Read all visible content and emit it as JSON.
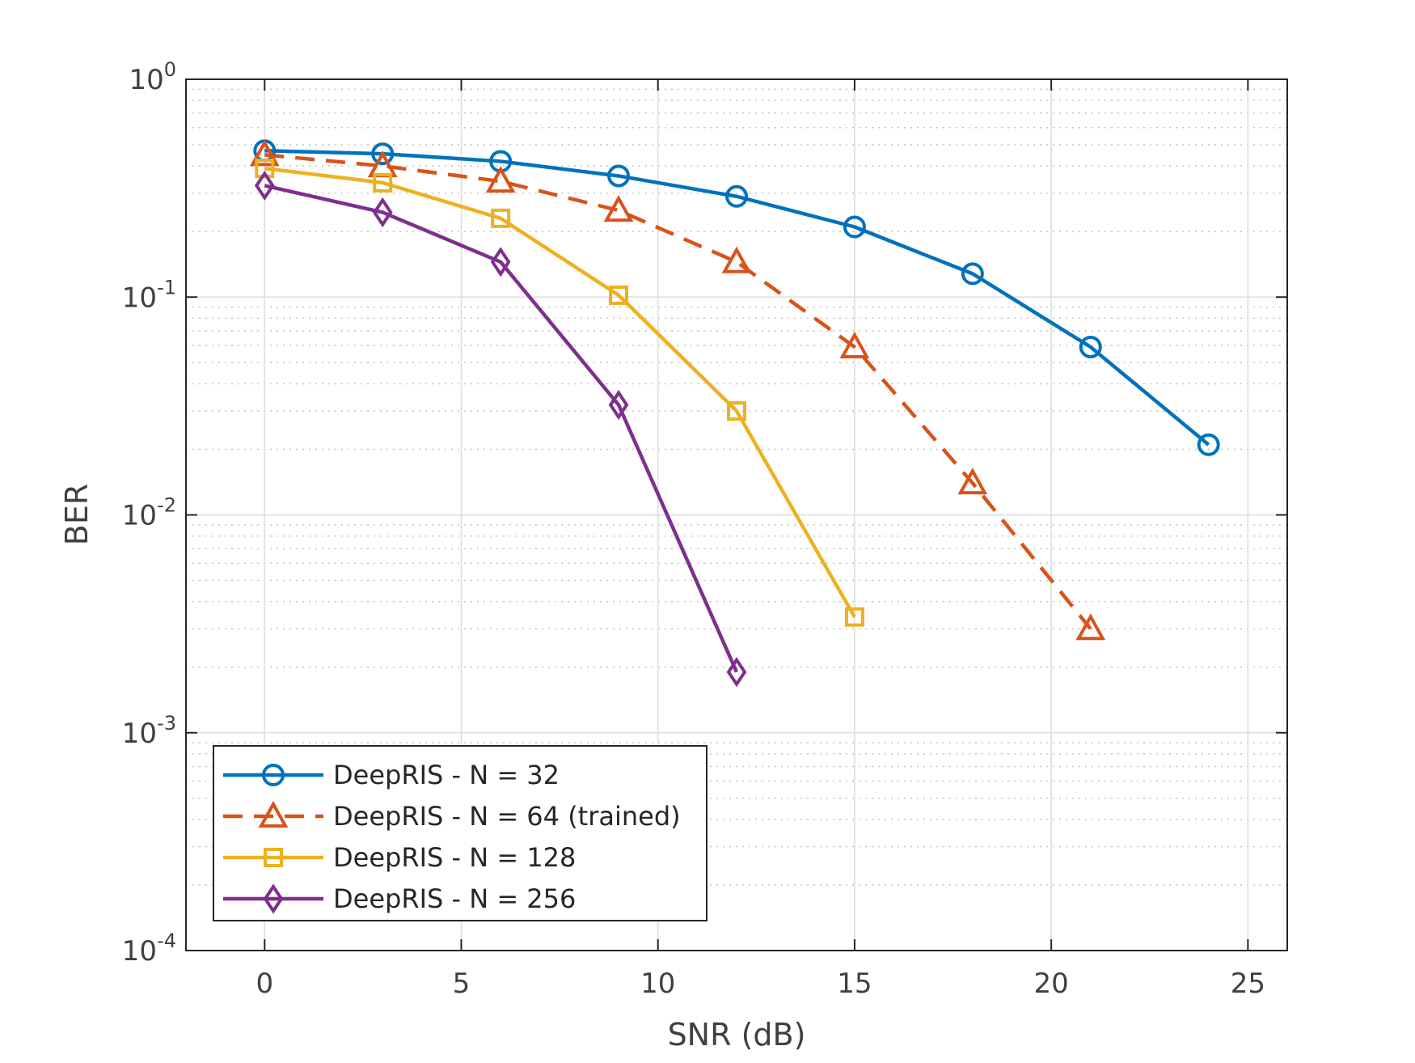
{
  "chart_data": {
    "type": "line",
    "title": "",
    "xlabel": "SNR (dB)",
    "ylabel": "BER",
    "yscale": "log",
    "xlim": [
      -2,
      26
    ],
    "ylim": [
      0.0001,
      1
    ],
    "grid": true,
    "minor_grid": true,
    "legend_position": "bottom-left",
    "x_ticks": [
      0,
      5,
      10,
      15,
      20,
      25
    ],
    "x_tick_labels": [
      "0",
      "5",
      "10",
      "15",
      "20",
      "25"
    ],
    "y_ticks": [
      {
        "value": 0.0001,
        "base": "10",
        "exp": "-4"
      },
      {
        "value": 0.001,
        "base": "10",
        "exp": "-3"
      },
      {
        "value": 0.01,
        "base": "10",
        "exp": "-2"
      },
      {
        "value": 0.1,
        "base": "10",
        "exp": "-1"
      },
      {
        "value": 1,
        "base": "10",
        "exp": "0"
      }
    ],
    "series": [
      {
        "name": "DeepRIS - N = 32",
        "color": "#0072BD",
        "marker": "circle",
        "dashed": false,
        "x": [
          0,
          3,
          6,
          9,
          12,
          15,
          18,
          21,
          24
        ],
        "y": [
          0.47,
          0.455,
          0.42,
          0.36,
          0.29,
          0.21,
          0.128,
          0.059,
          0.021
        ]
      },
      {
        "name": "DeepRIS - N = 64 (trained)",
        "color": "#D95319",
        "marker": "triangle",
        "dashed": true,
        "x": [
          0,
          3,
          6,
          9,
          12,
          15,
          18,
          21
        ],
        "y": [
          0.45,
          0.4,
          0.34,
          0.25,
          0.145,
          0.059,
          0.014,
          0.003
        ]
      },
      {
        "name": "DeepRIS - N = 128",
        "color": "#EDB120",
        "marker": "square",
        "dashed": false,
        "x": [
          0,
          3,
          6,
          9,
          12,
          15
        ],
        "y": [
          0.39,
          0.335,
          0.23,
          0.102,
          0.03,
          0.0034
        ]
      },
      {
        "name": "DeepRIS - N = 256",
        "color": "#7E2F8E",
        "marker": "diamond",
        "dashed": false,
        "x": [
          0,
          3,
          6,
          9,
          12
        ],
        "y": [
          0.325,
          0.245,
          0.145,
          0.032,
          0.0019
        ]
      }
    ]
  }
}
